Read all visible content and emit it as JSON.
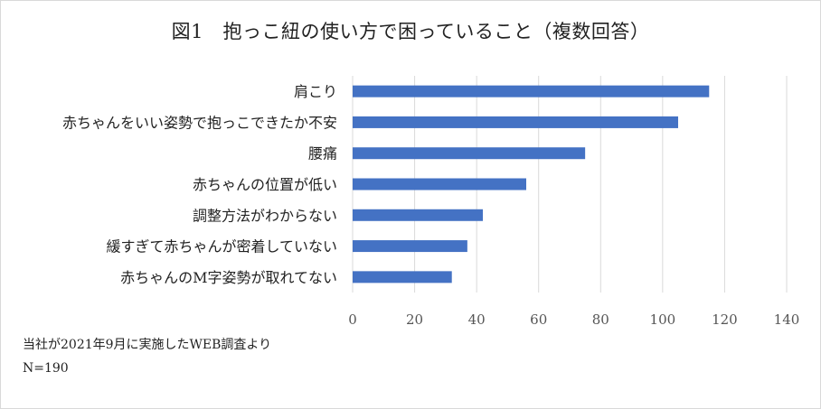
{
  "chart_data": {
    "type": "bar",
    "orientation": "horizontal",
    "title": "図1　抱っこ紐の使い方で困っていること（複数回答）",
    "categories": [
      "肩こり",
      "赤ちゃんをいい姿勢で抱っこできたか不安",
      "腰痛",
      "赤ちゃんの位置が低い",
      "調整方法がわからない",
      "緩すぎて赤ちゃんが密着していない",
      "赤ちゃんのM字姿勢が取れてない"
    ],
    "values": [
      115,
      105,
      75,
      56,
      42,
      37,
      32
    ],
    "xlim": [
      0,
      140
    ],
    "xticks": [
      "0",
      "20",
      "40",
      "60",
      "80",
      "100",
      "120",
      "140"
    ],
    "grid": "vertical",
    "bar_color": "#4472c4"
  },
  "notes": {
    "source": "当社が2021年9月に実施したWEB調査より",
    "sample": "N=190"
  }
}
